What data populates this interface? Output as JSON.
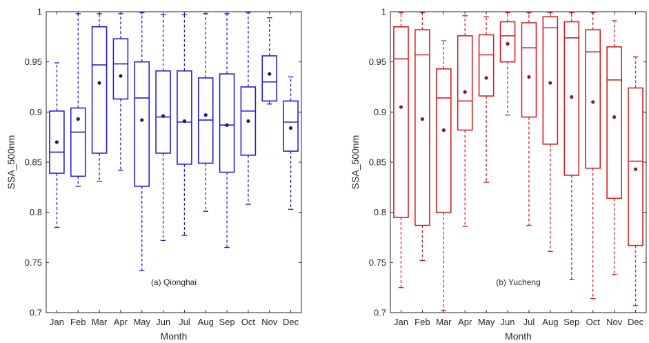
{
  "chart_data": [
    {
      "type": "box",
      "annotation": "(a) Qionghai",
      "xlabel": "Month",
      "ylabel": "SSA_500nm",
      "ylim": [
        0.7,
        1.0
      ],
      "yticks": [
        "0.7",
        "0.75",
        "0.8",
        "0.85",
        "0.9",
        "0.95",
        "1"
      ],
      "grid": false,
      "color": "#1f1fd6",
      "mean_color": "#1a1a6e",
      "categories": [
        "Jan",
        "Feb",
        "Mar",
        "Apr",
        "May",
        "Jun",
        "Jul",
        "Aug",
        "Sep",
        "Oct",
        "Nov",
        "Dec"
      ],
      "boxes": [
        {
          "min": 0.785,
          "q1": 0.839,
          "median": 0.86,
          "q3": 0.901,
          "max": 0.949,
          "mean": 0.87
        },
        {
          "min": 0.826,
          "q1": 0.836,
          "median": 0.88,
          "q3": 0.904,
          "max": 0.998,
          "mean": 0.893
        },
        {
          "min": 0.831,
          "q1": 0.859,
          "median": 0.947,
          "q3": 0.985,
          "max": 0.998,
          "mean": 0.929
        },
        {
          "min": 0.842,
          "q1": 0.913,
          "median": 0.948,
          "q3": 0.973,
          "max": 0.998,
          "mean": 0.936
        },
        {
          "min": 0.742,
          "q1": 0.826,
          "median": 0.914,
          "q3": 0.95,
          "max": 0.999,
          "mean": 0.892
        },
        {
          "min": 0.772,
          "q1": 0.859,
          "median": 0.895,
          "q3": 0.941,
          "max": 0.997,
          "mean": 0.896
        },
        {
          "min": 0.777,
          "q1": 0.848,
          "median": 0.89,
          "q3": 0.941,
          "max": 0.997,
          "mean": 0.891
        },
        {
          "min": 0.801,
          "q1": 0.849,
          "median": 0.892,
          "q3": 0.934,
          "max": 0.998,
          "mean": 0.897
        },
        {
          "min": 0.765,
          "q1": 0.84,
          "median": 0.887,
          "q3": 0.938,
          "max": 0.998,
          "mean": 0.887
        },
        {
          "min": 0.808,
          "q1": 0.857,
          "median": 0.901,
          "q3": 0.925,
          "max": 0.999,
          "mean": 0.891
        },
        {
          "min": 0.908,
          "q1": 0.911,
          "median": 0.93,
          "q3": 0.956,
          "max": 0.994,
          "mean": 0.938
        },
        {
          "min": 0.803,
          "q1": 0.861,
          "median": 0.89,
          "q3": 0.911,
          "max": 0.935,
          "mean": 0.884
        }
      ]
    },
    {
      "type": "box",
      "annotation": "(b) Yucheng",
      "xlabel": "Month",
      "ylabel": "SSA_500nm",
      "ylim": [
        0.7,
        1.0
      ],
      "yticks": [
        "0.7",
        "0.75",
        "0.8",
        "0.85",
        "0.9",
        "0.95",
        "1"
      ],
      "grid": false,
      "color": "#d62020",
      "mean_color": "#8c1a1a",
      "categories": [
        "Jan",
        "Feb",
        "Mar",
        "Apr",
        "May",
        "Jun",
        "Jul",
        "Aug",
        "Sep",
        "Oct",
        "Nov",
        "Dec"
      ],
      "boxes": [
        {
          "min": 0.725,
          "q1": 0.795,
          "median": 0.953,
          "q3": 0.985,
          "max": 0.999,
          "mean": 0.905
        },
        {
          "min": 0.752,
          "q1": 0.787,
          "median": 0.957,
          "q3": 0.982,
          "max": 0.999,
          "mean": 0.893
        },
        {
          "min": 0.702,
          "q1": 0.8,
          "median": 0.914,
          "q3": 0.943,
          "max": 0.971,
          "mean": 0.882
        },
        {
          "min": 0.786,
          "q1": 0.882,
          "median": 0.911,
          "q3": 0.976,
          "max": 0.996,
          "mean": 0.92
        },
        {
          "min": 0.83,
          "q1": 0.916,
          "median": 0.957,
          "q3": 0.977,
          "max": 0.995,
          "mean": 0.934
        },
        {
          "min": 0.897,
          "q1": 0.95,
          "median": 0.976,
          "q3": 0.99,
          "max": 0.999,
          "mean": 0.968
        },
        {
          "min": 0.787,
          "q1": 0.895,
          "median": 0.964,
          "q3": 0.989,
          "max": 0.999,
          "mean": 0.935
        },
        {
          "min": 0.761,
          "q1": 0.868,
          "median": 0.984,
          "q3": 0.995,
          "max": 0.999,
          "mean": 0.929
        },
        {
          "min": 0.733,
          "q1": 0.837,
          "median": 0.974,
          "q3": 0.99,
          "max": 0.999,
          "mean": 0.915
        },
        {
          "min": 0.714,
          "q1": 0.844,
          "median": 0.96,
          "q3": 0.982,
          "max": 0.999,
          "mean": 0.91
        },
        {
          "min": 0.738,
          "q1": 0.814,
          "median": 0.932,
          "q3": 0.965,
          "max": 0.991,
          "mean": 0.895
        },
        {
          "min": 0.707,
          "q1": 0.767,
          "median": 0.851,
          "q3": 0.924,
          "max": 0.955,
          "mean": 0.843
        }
      ]
    }
  ]
}
